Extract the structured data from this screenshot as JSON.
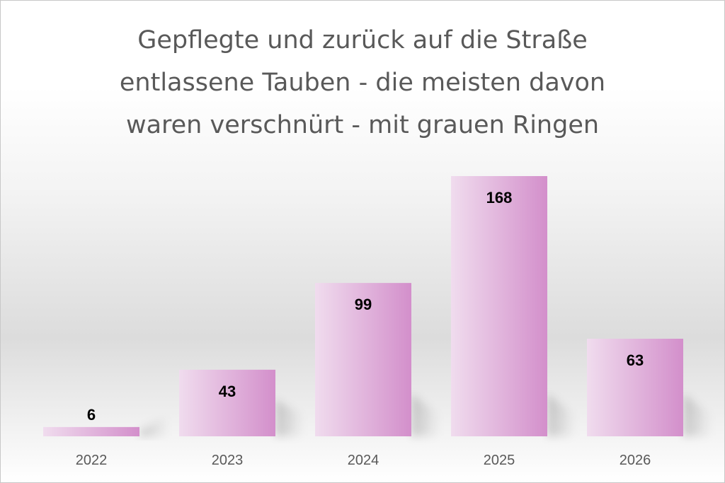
{
  "chart_data": {
    "type": "bar",
    "title_lines": [
      "Gepflegte und zurück auf die Straße",
      "entlassene Tauben - die meisten davon",
      "waren verschnürt - mit grauen Ringen"
    ],
    "categories": [
      "2022",
      "2023",
      "2024",
      "2025",
      "2026"
    ],
    "values": [
      6,
      43,
      99,
      168,
      63
    ],
    "data_labels": [
      "6",
      "43",
      "99",
      "168",
      "63"
    ],
    "ylim": [
      0,
      168
    ],
    "grid": false,
    "legend": "none",
    "colors": {
      "bar_light": "#f0dcee",
      "bar_dark": "#d38fcb",
      "title": "#595959",
      "tick_label": "#595959"
    }
  }
}
